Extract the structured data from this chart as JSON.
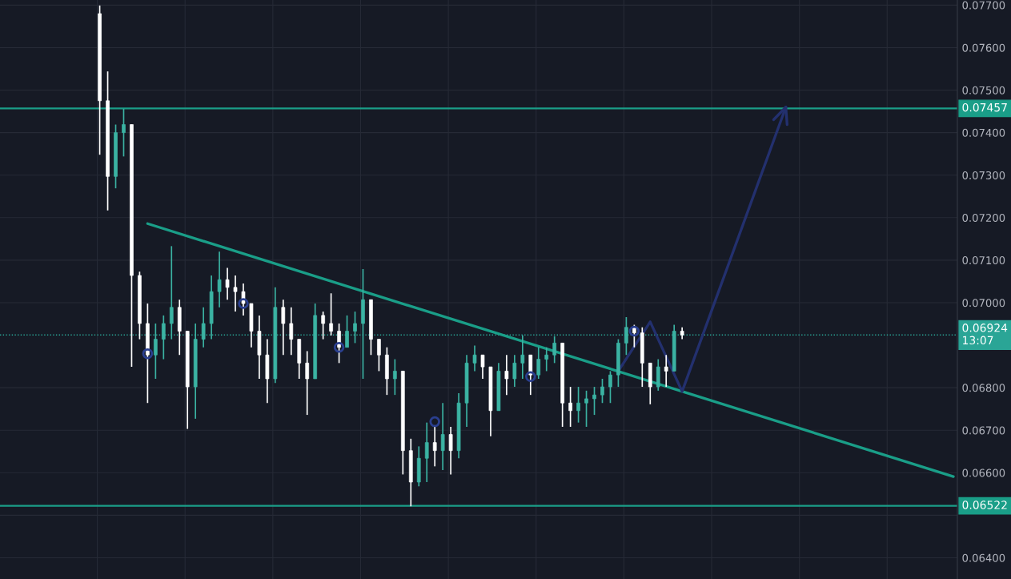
{
  "chart_data": {
    "type": "candlestick",
    "categories": [
      null,
      null,
      null,
      null,
      null,
      null,
      null,
      null,
      null,
      null,
      null,
      null,
      null,
      null,
      null,
      null,
      null,
      null,
      null,
      null,
      null,
      null,
      null,
      null,
      null,
      null,
      null,
      null,
      null,
      null,
      null,
      null,
      null,
      null,
      null,
      null,
      null,
      null,
      null,
      null,
      null,
      null,
      null,
      null,
      null,
      null,
      null,
      null,
      null,
      null,
      null,
      null,
      null,
      null,
      null,
      null,
      null,
      null,
      null,
      null,
      null,
      null,
      null,
      null,
      null,
      null,
      null,
      null,
      null,
      null,
      null,
      null,
      null,
      null,
      null,
      null,
      null,
      null,
      null,
      null,
      null,
      null,
      null,
      null,
      null,
      null,
      null,
      null,
      null,
      null,
      null,
      null,
      null,
      null,
      null,
      null,
      null,
      null,
      null,
      null,
      null,
      null,
      null,
      null,
      null,
      null,
      null,
      null,
      null,
      null,
      null,
      null,
      null,
      null,
      null,
      null,
      null,
      null,
      null,
      null
    ],
    "ohlc": [
      null,
      null,
      null,
      null,
      null,
      null,
      null,
      null,
      null,
      null,
      null,
      null,
      [
        0.0768,
        0.07699,
        0.07348,
        0.07475
      ],
      [
        0.07475,
        0.07544,
        0.07217,
        0.07297
      ],
      [
        0.07297,
        0.07419,
        0.07269,
        0.074
      ],
      [
        0.074,
        0.07456,
        0.07344,
        0.07419
      ],
      [
        0.07419,
        0.07419,
        0.06849,
        0.07064
      ],
      [
        0.07064,
        0.07073,
        0.06914,
        0.06951
      ],
      [
        0.06951,
        0.06998,
        0.06764,
        0.06877
      ],
      [
        0.06877,
        0.06951,
        0.06821,
        0.06914
      ],
      [
        0.06914,
        0.0697,
        0.06867,
        0.06951
      ],
      [
        0.06951,
        0.07133,
        0.06914,
        0.06989
      ],
      [
        0.06989,
        0.07007,
        0.06877,
        0.06933
      ],
      [
        0.06933,
        0.06933,
        0.06703,
        0.06802
      ],
      [
        0.06802,
        0.06951,
        0.06727,
        0.06914
      ],
      [
        0.06914,
        0.06989,
        0.06895,
        0.06951
      ],
      [
        0.06951,
        0.07064,
        0.06914,
        0.07026
      ],
      [
        0.07026,
        0.0712,
        0.06989,
        0.07054
      ],
      [
        0.07054,
        0.07082,
        0.07007,
        0.07036
      ],
      [
        0.07036,
        0.07064,
        0.06979,
        0.07026
      ],
      [
        0.07026,
        0.07045,
        0.0697,
        0.06998
      ],
      [
        0.06998,
        0.06998,
        0.06895,
        0.06933
      ],
      [
        0.06933,
        0.0697,
        0.06821,
        0.06877
      ],
      [
        0.06877,
        0.06914,
        0.06764,
        0.06821
      ],
      [
        0.06821,
        0.07036,
        0.06811,
        0.06989
      ],
      [
        0.06989,
        0.07007,
        0.06877,
        0.06951
      ],
      [
        0.06951,
        0.06989,
        0.06877,
        0.06914
      ],
      [
        0.06914,
        0.06914,
        0.06821,
        0.06858
      ],
      [
        0.06858,
        0.06886,
        0.06736,
        0.06821
      ],
      [
        0.06821,
        0.06998,
        0.06821,
        0.0697
      ],
      [
        0.0697,
        0.06979,
        0.06914,
        0.06951
      ],
      [
        0.06951,
        0.07022,
        0.06923,
        0.06933
      ],
      [
        0.06933,
        0.06951,
        0.06858,
        0.06895
      ],
      [
        0.06895,
        0.0697,
        0.06895,
        0.06933
      ],
      [
        0.06933,
        0.06979,
        0.06905,
        0.06951
      ],
      [
        0.06951,
        0.07079,
        0.06821,
        0.07007
      ],
      [
        0.07007,
        0.07007,
        0.06877,
        0.06914
      ],
      [
        0.06914,
        0.06914,
        0.06839,
        0.06877
      ],
      [
        0.06877,
        0.06895,
        0.06783,
        0.06821
      ],
      [
        0.06821,
        0.06867,
        0.06783,
        0.06839
      ],
      [
        0.06839,
        0.06839,
        0.06596,
        0.06652
      ],
      [
        0.06652,
        0.0668,
        0.06521,
        0.06578
      ],
      [
        0.06578,
        0.06662,
        0.06568,
        0.06634
      ],
      [
        0.06634,
        0.06718,
        0.06578,
        0.06671
      ],
      [
        0.06671,
        0.06708,
        0.06615,
        0.06652
      ],
      [
        0.06652,
        0.06764,
        0.06606,
        0.0669
      ],
      [
        0.0669,
        0.06708,
        0.06596,
        0.06652
      ],
      [
        0.06652,
        0.06787,
        0.06634,
        0.06764
      ],
      [
        0.06764,
        0.06877,
        0.06708,
        0.06858
      ],
      [
        0.06858,
        0.06899,
        0.06839,
        0.06877
      ],
      [
        0.06877,
        0.06877,
        0.06821,
        0.06849
      ],
      [
        0.06849,
        0.06849,
        0.06686,
        0.06746
      ],
      [
        0.06746,
        0.06858,
        0.06746,
        0.06839
      ],
      [
        0.06839,
        0.06877,
        0.06783,
        0.06821
      ],
      [
        0.06821,
        0.06877,
        0.06802,
        0.06858
      ],
      [
        0.06858,
        0.06923,
        0.06821,
        0.06877
      ],
      [
        0.06877,
        0.06877,
        0.06783,
        0.0683
      ],
      [
        0.0683,
        0.06895,
        0.06821,
        0.06867
      ],
      [
        0.06867,
        0.06895,
        0.06839,
        0.06877
      ],
      [
        0.06877,
        0.06921,
        0.06858,
        0.06905
      ],
      [
        0.06905,
        0.06905,
        0.06708,
        0.06764
      ],
      [
        0.06764,
        0.06802,
        0.06708,
        0.06746
      ],
      [
        0.06746,
        0.06802,
        0.06718,
        0.06764
      ],
      [
        0.06764,
        0.06793,
        0.06708,
        0.06774
      ],
      [
        0.06774,
        0.06802,
        0.06736,
        0.06783
      ],
      [
        0.06783,
        0.06821,
        0.06764,
        0.06802
      ],
      [
        0.06802,
        0.06839,
        0.06764,
        0.0683
      ],
      [
        0.0683,
        0.06914,
        0.06802,
        0.06905
      ],
      [
        0.06905,
        0.06966,
        0.06877,
        0.06942
      ],
      [
        0.06942,
        0.06948,
        0.06895,
        0.06929
      ],
      [
        0.06929,
        0.06942,
        0.06802,
        0.06858
      ],
      [
        0.06858,
        0.06858,
        0.06761,
        0.06802
      ],
      [
        0.06802,
        0.06867,
        0.06793,
        0.06849
      ],
      [
        0.06849,
        0.06877,
        0.06802,
        0.06839
      ],
      [
        0.06839,
        0.06948,
        0.06839,
        0.06933
      ],
      [
        0.06933,
        0.06942,
        0.06914,
        0.06924
      ],
      null,
      null,
      null,
      null,
      null,
      null,
      null,
      null,
      null,
      null,
      null,
      null,
      null,
      null,
      null,
      null,
      null,
      null,
      null,
      null,
      null,
      null,
      null,
      null,
      null,
      null,
      null,
      null,
      null,
      null,
      null,
      null,
      null,
      null
    ],
    "series": [
      {
        "type": "line",
        "color": "#1a9e88",
        "values": [
          null,
          null,
          null,
          null,
          null,
          null,
          null,
          null,
          null,
          null,
          null,
          null,
          null,
          null,
          null,
          null,
          null,
          null,
          0.07186,
          null,
          null,
          null,
          null,
          null,
          null,
          null,
          null,
          null,
          null,
          null,
          null,
          null,
          null,
          null,
          null,
          null,
          null,
          null,
          null,
          null,
          null,
          null,
          null,
          null,
          null,
          null,
          null,
          null,
          null,
          null,
          null,
          null,
          null,
          null,
          null,
          null,
          null,
          null,
          null,
          null,
          null,
          null,
          null,
          null,
          null,
          null,
          null,
          null,
          null,
          null,
          null,
          null,
          null,
          null,
          null,
          null,
          null,
          null,
          null,
          null,
          null,
          null,
          null,
          null,
          null,
          null,
          null,
          null,
          null,
          null,
          null,
          null,
          null,
          null,
          null,
          null,
          null,
          null,
          null,
          null,
          null,
          null,
          null,
          null,
          null,
          null,
          null,
          null,
          null,
          null,
          null,
          null,
          null,
          null,
          null,
          null,
          null,
          null,
          null,
          0.06591
        ]
      },
      {
        "type": "line",
        "color": "#23306e",
        "values": [
          null,
          null,
          null,
          null,
          null,
          null,
          null,
          null,
          null,
          null,
          null,
          null,
          null,
          null,
          null,
          null,
          null,
          null,
          null,
          null,
          null,
          null,
          null,
          null,
          null,
          null,
          null,
          null,
          null,
          null,
          null,
          null,
          null,
          null,
          null,
          null,
          null,
          null,
          null,
          null,
          null,
          null,
          null,
          null,
          null,
          null,
          null,
          null,
          null,
          null,
          null,
          null,
          null,
          null,
          null,
          null,
          null,
          null,
          null,
          null,
          null,
          null,
          null,
          null,
          null,
          null,
          null,
          null,
          null,
          null,
          null,
          null,
          null,
          null,
          null,
          null,
          null,
          0.06839,
          null,
          null,
          null,
          0.06955,
          null,
          null,
          null,
          0.06791,
          null,
          null,
          null,
          null,
          null,
          null,
          null,
          null,
          null,
          null,
          null,
          null,
          0.0746,
          null,
          null,
          null,
          null,
          null,
          null,
          null,
          null,
          null,
          null,
          null,
          null,
          null,
          null,
          null,
          null,
          null,
          null,
          null,
          null,
          null
        ]
      },
      {
        "type": "scatter",
        "color": "#2a3f8f",
        "marker": "circle",
        "values": [
          null,
          null,
          null,
          null,
          null,
          null,
          null,
          null,
          null,
          null,
          null,
          null,
          null,
          null,
          null,
          null,
          null,
          null,
          0.0688,
          null,
          null,
          null,
          null,
          null,
          null,
          null,
          null,
          null,
          null,
          null,
          0.06998,
          null,
          null,
          null,
          null,
          null,
          null,
          null,
          null,
          null,
          null,
          null,
          0.06895,
          null,
          null,
          null,
          null,
          null,
          null,
          null,
          null,
          null,
          null,
          null,
          0.0672,
          null,
          null,
          null,
          null,
          null,
          null,
          null,
          null,
          null,
          null,
          null,
          0.06826,
          null,
          null,
          null,
          null,
          null,
          null,
          null,
          null,
          null,
          null,
          null,
          null,
          0.06933,
          null,
          null,
          null,
          null,
          null,
          null,
          null,
          null,
          null,
          null,
          null,
          null,
          null,
          null,
          null,
          null,
          null,
          null,
          null,
          null,
          null,
          null,
          null,
          null,
          null,
          null,
          null,
          null,
          null,
          null,
          null,
          null,
          null,
          null,
          null,
          null,
          null,
          null,
          null,
          null
        ]
      }
    ],
    "ylim": [
      0.0635,
      0.07712
    ],
    "yticks": [
      {
        "value": 0.064,
        "label": "0.06400"
      },
      {
        "value": 0.065,
        "label": null
      },
      {
        "value": 0.066,
        "label": "0.06600"
      },
      {
        "value": 0.067,
        "label": "0.06700"
      },
      {
        "value": 0.068,
        "label": "0.06800"
      },
      {
        "value": 0.07,
        "label": "0.07000"
      },
      {
        "value": 0.071,
        "label": "0.07100"
      },
      {
        "value": 0.072,
        "label": "0.07200"
      },
      {
        "value": 0.073,
        "label": "0.07300"
      },
      {
        "value": 0.074,
        "label": "0.07400"
      },
      {
        "value": 0.075,
        "label": "0.07500"
      },
      {
        "value": 0.076,
        "label": "0.07600"
      },
      {
        "value": 0.077,
        "label": "0.07700"
      }
    ],
    "ref_lines": [
      {
        "axis": "y",
        "value": 0.07457,
        "label": "0.07457",
        "color": "#1a9e88",
        "line_style": "solid"
      },
      {
        "axis": "y",
        "value": 0.06522,
        "label": "0.06522",
        "color": "#1a9e88",
        "line_style": "solid"
      },
      {
        "axis": "y",
        "value": 0.06924,
        "label": "0.06924\n13:07",
        "color": "#2aa596",
        "line_style": "dotted"
      }
    ],
    "grid": true,
    "tick_labels": "y"
  }
}
